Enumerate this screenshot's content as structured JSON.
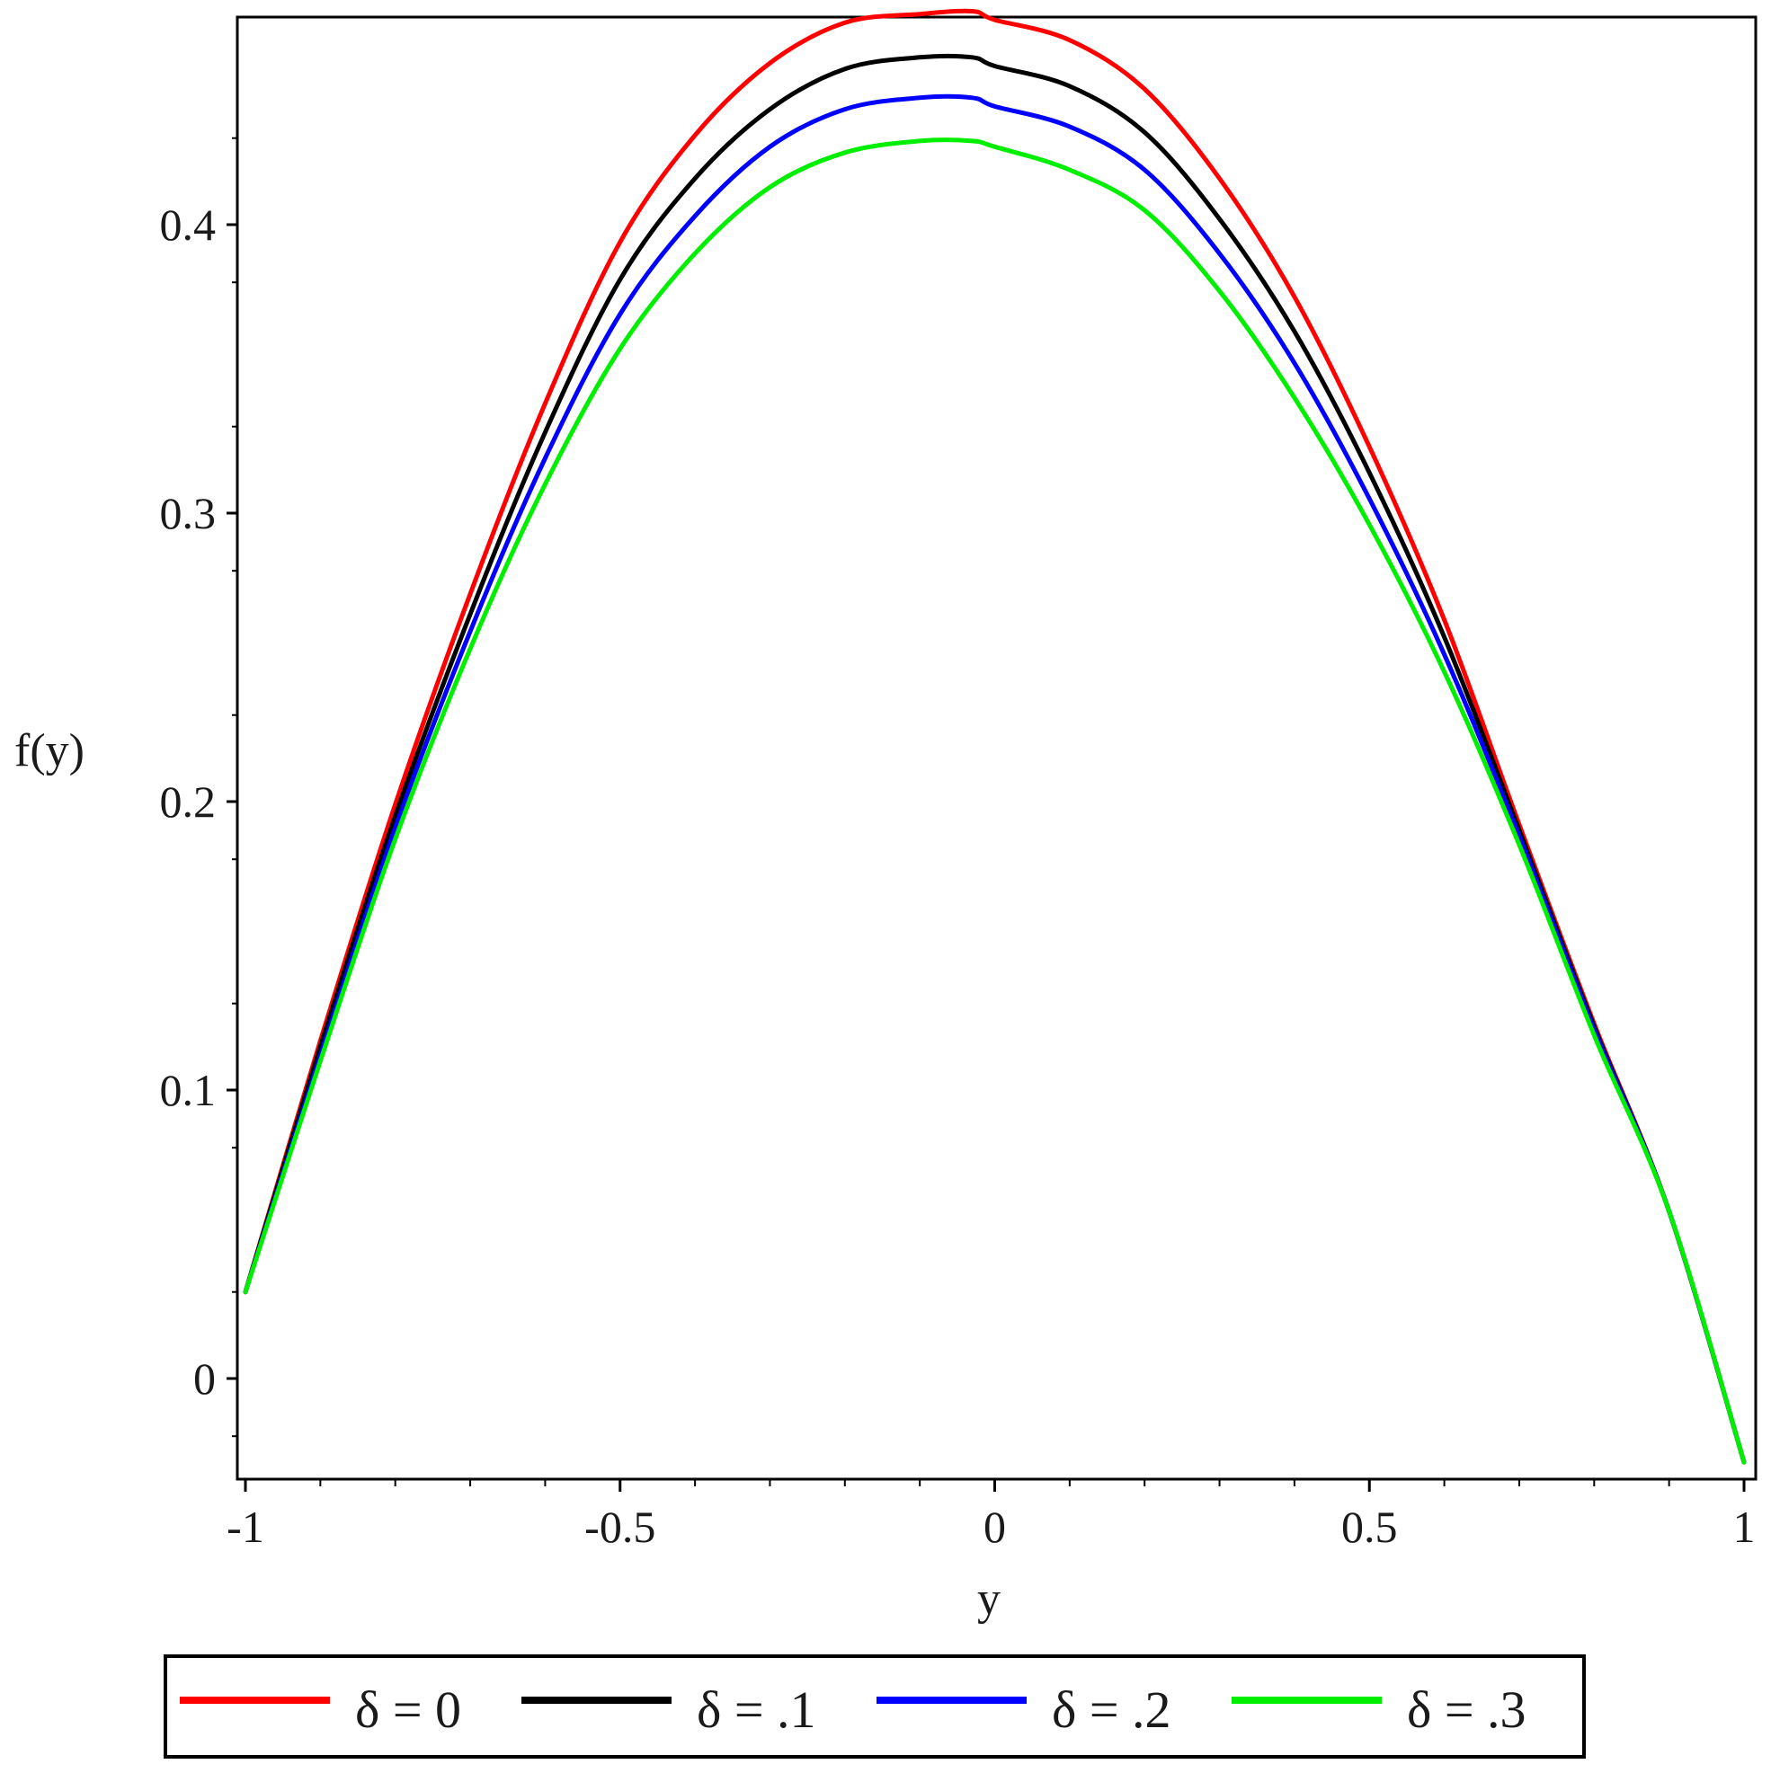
{
  "chart_data": {
    "type": "line",
    "title": "",
    "xlabel": "y",
    "ylabel": "f(y)",
    "xlim": [
      -1,
      1
    ],
    "ylim": [
      -0.035,
      0.475
    ],
    "x_ticks": [
      -1,
      -0.5,
      0,
      0.5,
      1
    ],
    "x_tick_labels": [
      "-1",
      "-0.5",
      "0",
      "0.5",
      "1"
    ],
    "y_ticks": [
      0,
      0.1,
      0.2,
      0.3,
      0.4
    ],
    "y_tick_labels": [
      "0",
      "0.1",
      "0.2",
      "0.3",
      "0.4"
    ],
    "grid": false,
    "legend_position": "bottom",
    "series": [
      {
        "name": "δ = 0",
        "color": "#ff0000",
        "x": [
          -1,
          -0.9,
          -0.8,
          -0.7,
          -0.6,
          -0.5,
          -0.4,
          -0.3,
          -0.2,
          -0.1,
          -0.03,
          0,
          0.1,
          0.2,
          0.3,
          0.4,
          0.5,
          0.6,
          0.7,
          0.8,
          0.9,
          1
        ],
        "y": [
          0.03,
          0.117,
          0.199,
          0.272,
          0.338,
          0.394,
          0.431,
          0.456,
          0.47,
          0.473,
          0.474,
          0.471,
          0.464,
          0.447,
          0.416,
          0.375,
          0.323,
          0.263,
          0.192,
          0.123,
          0.058,
          -0.029
        ]
      },
      {
        "name": "δ = .1",
        "color": "#000000",
        "x": [
          -1,
          -0.9,
          -0.8,
          -0.7,
          -0.6,
          -0.5,
          -0.4,
          -0.3,
          -0.2,
          -0.1,
          -0.03,
          0,
          0.1,
          0.2,
          0.3,
          0.4,
          0.5,
          0.6,
          0.7,
          0.8,
          0.9,
          1
        ],
        "y": [
          0.03,
          0.115,
          0.195,
          0.265,
          0.328,
          0.381,
          0.416,
          0.44,
          0.454,
          0.458,
          0.458,
          0.455,
          0.448,
          0.432,
          0.402,
          0.363,
          0.314,
          0.257,
          0.19,
          0.122,
          0.058,
          -0.029
        ]
      },
      {
        "name": "δ = .2",
        "color": "#0000ff",
        "x": [
          -1,
          -0.9,
          -0.8,
          -0.7,
          -0.6,
          -0.5,
          -0.4,
          -0.3,
          -0.2,
          -0.1,
          -0.03,
          0,
          0.1,
          0.2,
          0.3,
          0.4,
          0.5,
          0.6,
          0.7,
          0.8,
          0.9,
          1
        ],
        "y": [
          0.03,
          0.112,
          0.191,
          0.259,
          0.319,
          0.369,
          0.403,
          0.427,
          0.44,
          0.444,
          0.444,
          0.441,
          0.434,
          0.419,
          0.39,
          0.352,
          0.305,
          0.251,
          0.188,
          0.121,
          0.058,
          -0.029
        ]
      },
      {
        "name": "δ = .3",
        "color": "#00ee00",
        "x": [
          -1,
          -0.9,
          -0.8,
          -0.7,
          -0.6,
          -0.5,
          -0.4,
          -0.3,
          -0.2,
          -0.1,
          -0.03,
          0,
          0.1,
          0.2,
          0.3,
          0.4,
          0.5,
          0.6,
          0.7,
          0.8,
          0.9,
          1
        ],
        "y": [
          0.03,
          0.11,
          0.187,
          0.253,
          0.31,
          0.357,
          0.39,
          0.413,
          0.425,
          0.429,
          0.429,
          0.427,
          0.419,
          0.405,
          0.377,
          0.34,
          0.296,
          0.245,
          0.185,
          0.119,
          0.058,
          -0.029
        ]
      }
    ]
  }
}
